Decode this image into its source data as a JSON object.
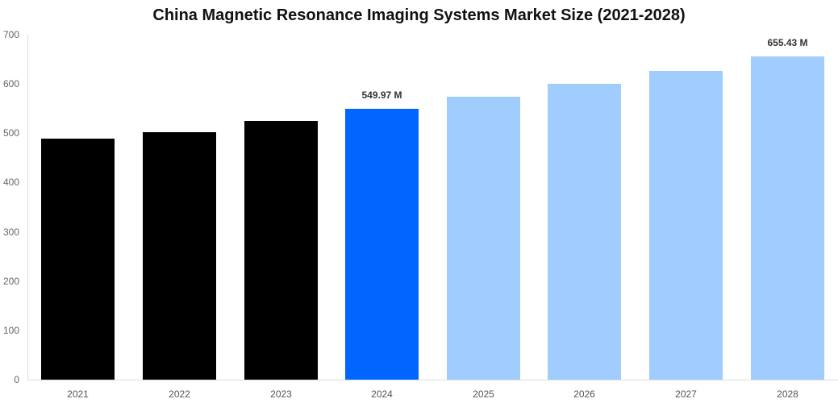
{
  "chart_data": {
    "type": "bar",
    "title": "China Magnetic Resonance Imaging Systems Market Size (2021-2028)",
    "xlabel": "",
    "ylabel": "",
    "ylim": [
      0,
      700
    ],
    "yticks": [
      "0",
      "100",
      "200",
      "300",
      "400",
      "500",
      "600",
      "700"
    ],
    "categories": [
      "2021",
      "2022",
      "2023",
      "2024",
      "2025",
      "2026",
      "2027",
      "2028"
    ],
    "values": [
      489,
      502,
      525,
      549.97,
      574,
      600,
      626,
      655.43
    ],
    "bar_colors": [
      "#000000",
      "#000000",
      "#000000",
      "#0066ff",
      "#a0cdfd",
      "#a0cdfd",
      "#a0cdfd",
      "#a0cdfd"
    ],
    "data_labels": [
      {
        "category": "2024",
        "text": "549.97 M"
      },
      {
        "category": "2028",
        "text": "655.43 M"
      }
    ],
    "grid": false,
    "legend": null
  }
}
